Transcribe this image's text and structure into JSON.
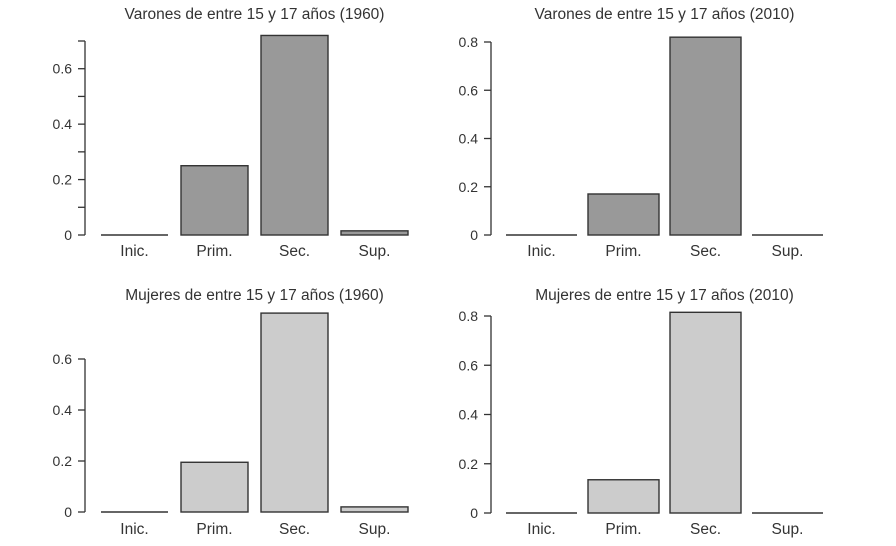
{
  "figure": {
    "background": "#ffffff",
    "text_color": "#333333",
    "axis_color": "#333333",
    "bar_stroke": "#333333"
  },
  "chart_data": [
    {
      "type": "bar",
      "title": "Varones de entre 15 y 17 años (1960)",
      "categories": [
        "Inic.",
        "Prim.",
        "Sec.",
        "Sup."
      ],
      "values": [
        0,
        0.25,
        0.72,
        0.015
      ],
      "xlabel": "",
      "ylabel": "",
      "ylim": [
        0,
        0.7
      ],
      "yticks": [
        0,
        0.1,
        0.2,
        0.3,
        0.4,
        0.5,
        0.6,
        0.7
      ],
      "ylabel_values": [
        0,
        0.2,
        0.4,
        0.6
      ],
      "ytick_labels": [
        "0",
        "0.2",
        "0.4",
        "0.6"
      ],
      "bar_fill": "#999999",
      "grid": false,
      "legend": "none"
    },
    {
      "type": "bar",
      "title": "Varones de entre 15 y 17 años (2010)",
      "categories": [
        "Inic.",
        "Prim.",
        "Sec.",
        "Sup."
      ],
      "values": [
        0,
        0.17,
        0.82,
        0
      ],
      "xlabel": "",
      "ylabel": "",
      "ylim": [
        0,
        0.8
      ],
      "yticks": [
        0,
        0.2,
        0.4,
        0.6,
        0.8
      ],
      "ylabel_values": [
        0,
        0.2,
        0.4,
        0.6,
        0.8
      ],
      "ytick_labels": [
        "0",
        "0.2",
        "0.4",
        "0.6",
        "0.8"
      ],
      "bar_fill": "#999999",
      "grid": false,
      "legend": "none"
    },
    {
      "type": "bar",
      "title": "Mujeres de entre 15 y 17 años (1960)",
      "categories": [
        "Inic.",
        "Prim.",
        "Sec.",
        "Sup."
      ],
      "values": [
        0,
        0.195,
        0.78,
        0.02
      ],
      "xlabel": "",
      "ylabel": "",
      "ylim": [
        0,
        0.6
      ],
      "yticks": [
        0,
        0.2,
        0.4,
        0.6
      ],
      "ylabel_values": [
        0,
        0.2,
        0.4,
        0.6
      ],
      "ytick_labels": [
        "0",
        "0.2",
        "0.4",
        "0.6"
      ],
      "bar_fill": "#cccccc",
      "grid": false,
      "legend": "none"
    },
    {
      "type": "bar",
      "title": "Mujeres de entre 15 y 17 años (2010)",
      "categories": [
        "Inic.",
        "Prim.",
        "Sec.",
        "Sup."
      ],
      "values": [
        0,
        0.135,
        0.815,
        0
      ],
      "xlabel": "",
      "ylabel": "",
      "ylim": [
        0,
        0.8
      ],
      "yticks": [
        0,
        0.2,
        0.4,
        0.6,
        0.8
      ],
      "ylabel_values": [
        0,
        0.2,
        0.4,
        0.6,
        0.8
      ],
      "ytick_labels": [
        "0",
        "0.2",
        "0.4",
        "0.6",
        "0.8"
      ],
      "bar_fill": "#cccccc",
      "grid": false,
      "legend": "none"
    }
  ]
}
